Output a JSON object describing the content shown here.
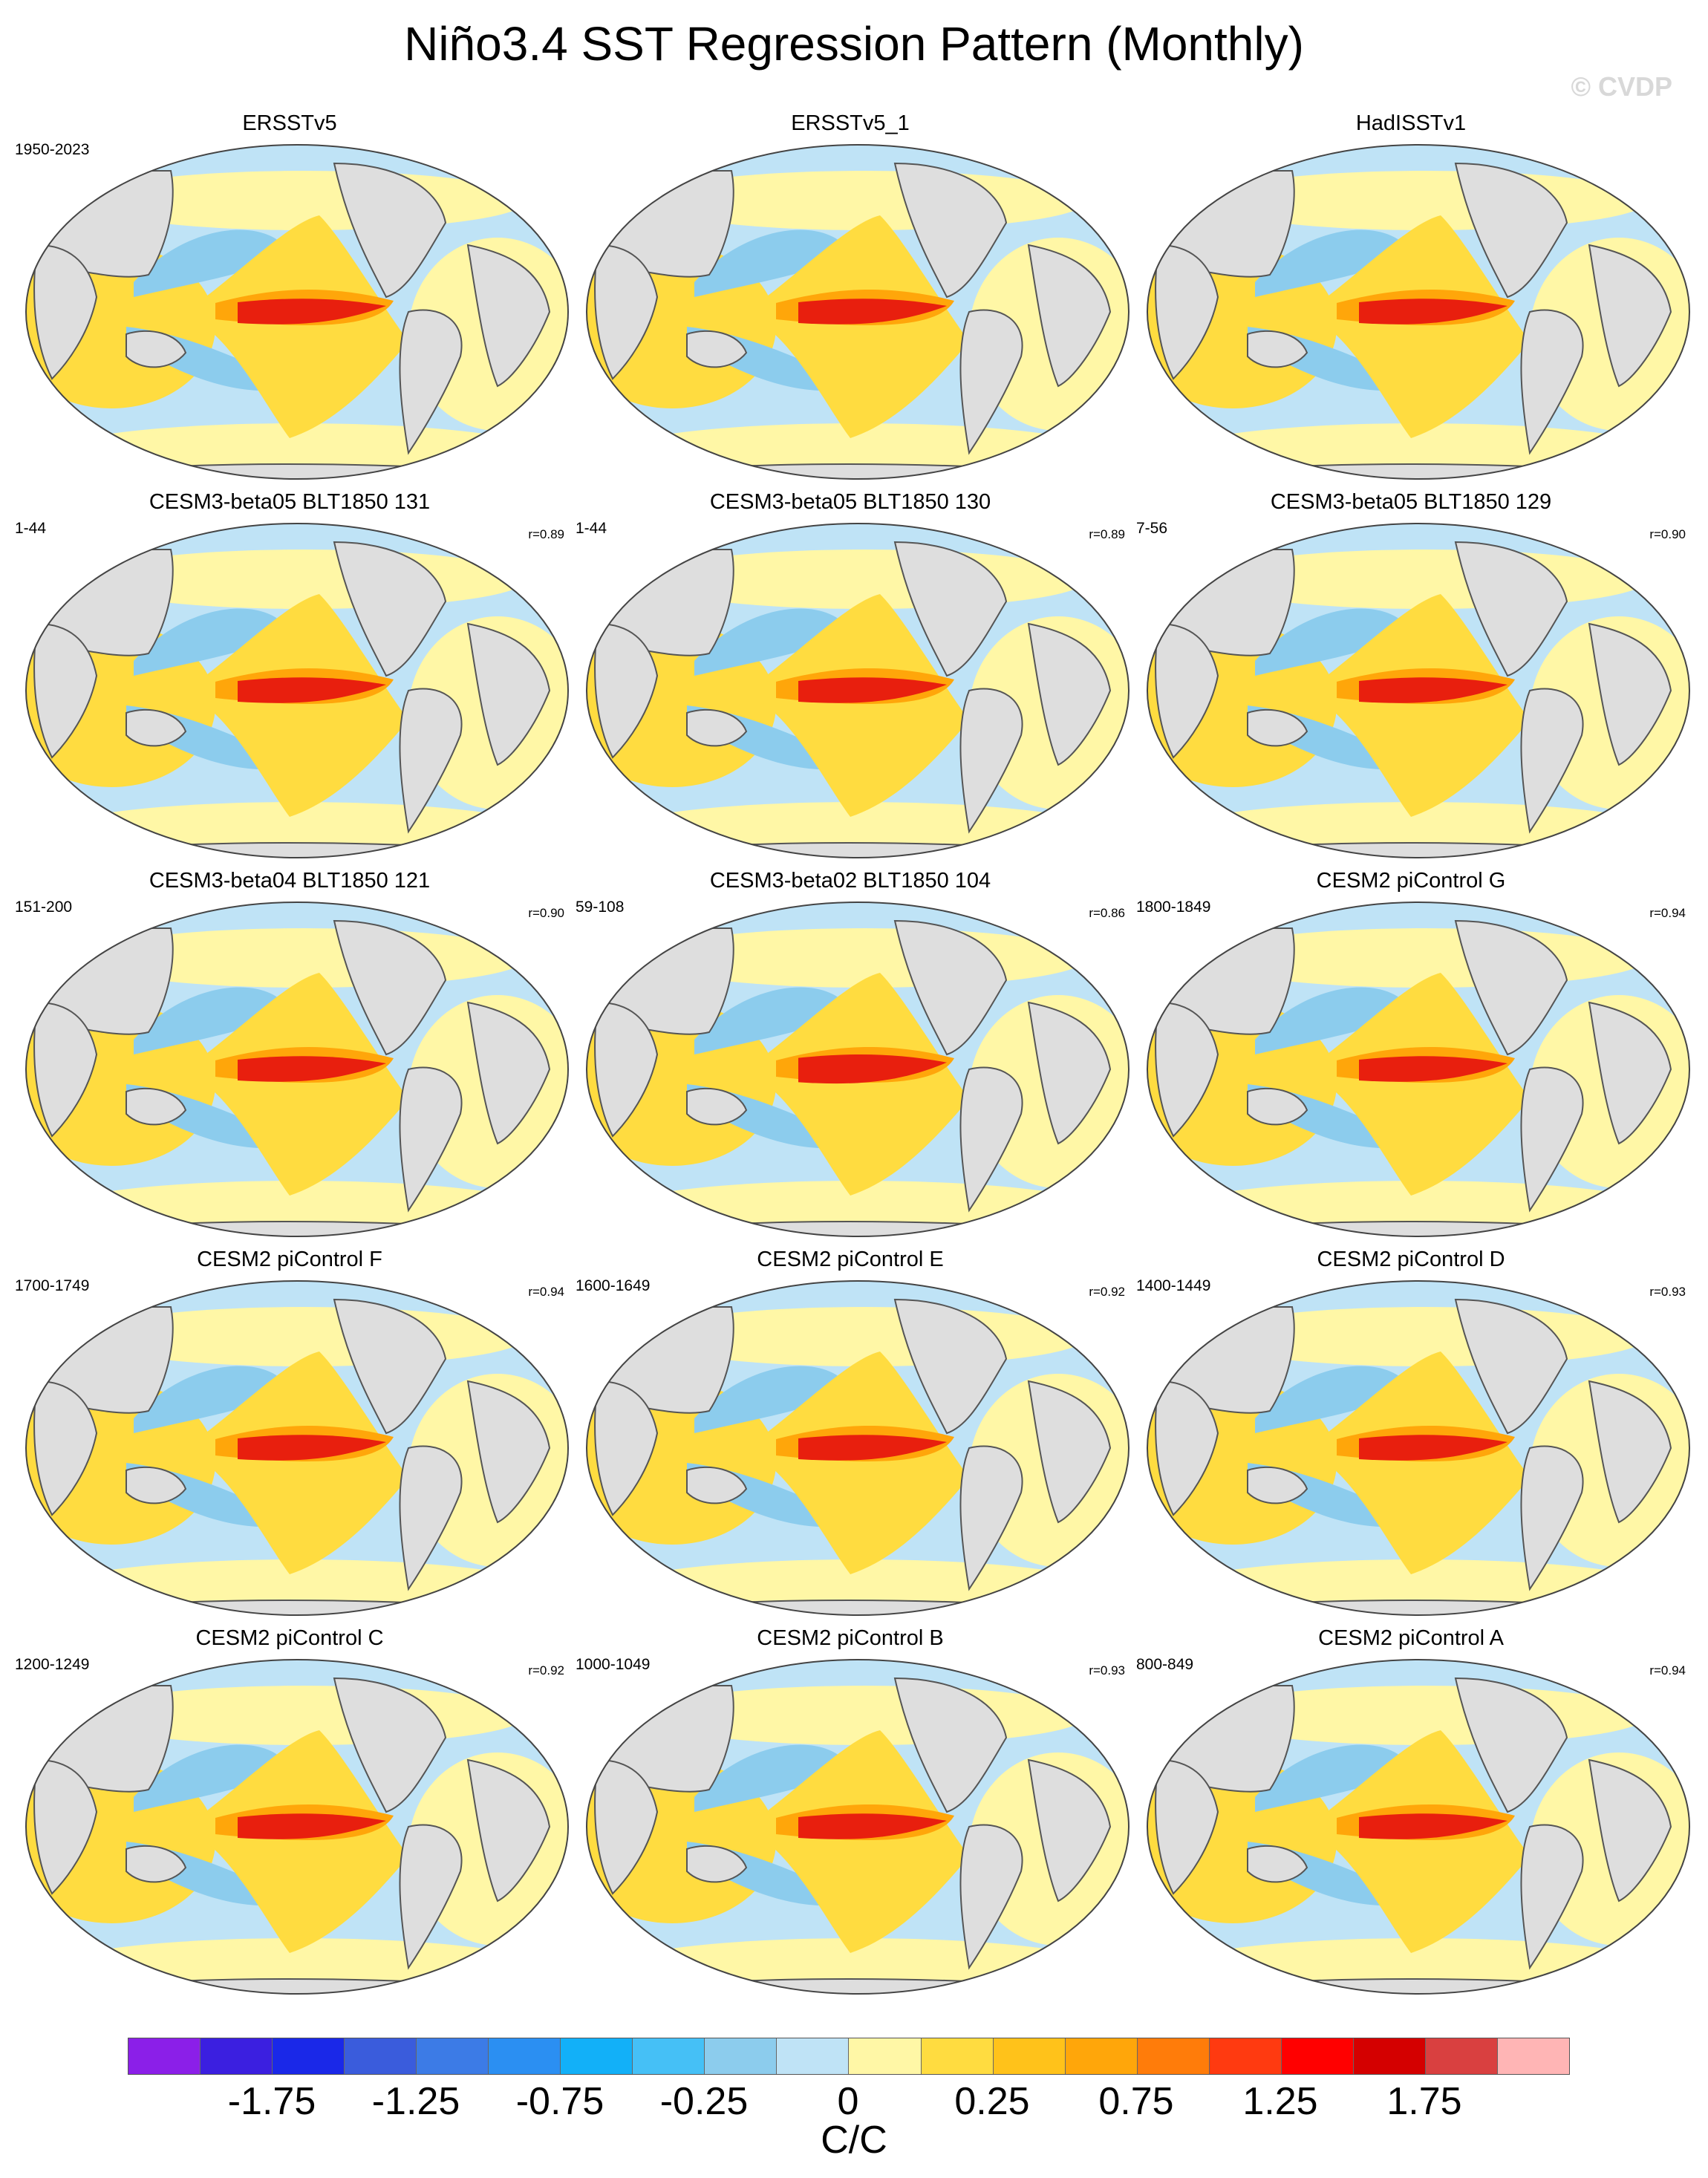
{
  "title": "Niño3.4 SST Regression Pattern (Monthly)",
  "watermark": "© CVDP",
  "panels": [
    {
      "title": "ERSSTv5",
      "period": "1950-2023",
      "corr": ""
    },
    {
      "title": "ERSSTv5_1",
      "period": "",
      "corr": ""
    },
    {
      "title": "HadISSTv1",
      "period": "",
      "corr": ""
    },
    {
      "title": "CESM3-beta05 BLT1850 131",
      "period": "1-44",
      "corr": "r=0.89"
    },
    {
      "title": "CESM3-beta05 BLT1850 130",
      "period": "1-44",
      "corr": "r=0.89"
    },
    {
      "title": "CESM3-beta05 BLT1850 129",
      "period": "7-56",
      "corr": "r=0.90"
    },
    {
      "title": "CESM3-beta04 BLT1850 121",
      "period": "151-200",
      "corr": "r=0.90"
    },
    {
      "title": "CESM3-beta02 BLT1850 104",
      "period": "59-108",
      "corr": "r=0.86"
    },
    {
      "title": "CESM2 piControl G",
      "period": "1800-1849",
      "corr": "r=0.94"
    },
    {
      "title": "CESM2 piControl F",
      "period": "1700-1749",
      "corr": "r=0.94"
    },
    {
      "title": "CESM2 piControl E",
      "period": "1600-1649",
      "corr": "r=0.92"
    },
    {
      "title": "CESM2 piControl D",
      "period": "1400-1449",
      "corr": "r=0.93"
    },
    {
      "title": "CESM2 piControl C",
      "period": "1200-1249",
      "corr": "r=0.92"
    },
    {
      "title": "CESM2 piControl B",
      "period": "1000-1049",
      "corr": "r=0.93"
    },
    {
      "title": "CESM2 piControl A",
      "period": "800-849",
      "corr": "r=0.94"
    }
  ],
  "colorbar": {
    "units": "C/C",
    "tick_labels": [
      "-1.75",
      "-1.25",
      "-0.75",
      "-0.25",
      "0",
      "0.25",
      "0.75",
      "1.25",
      "1.75"
    ],
    "colors": [
      "#8b1fe8",
      "#3b1fe0",
      "#1a28e8",
      "#3a5cdc",
      "#3c7be6",
      "#2b8ff2",
      "#12b0f8",
      "#45c0f6",
      "#8ccced",
      "#bfe3f6",
      "#fff7a6",
      "#ffdc40",
      "#ffc21a",
      "#ffa60a",
      "#ff7c0a",
      "#ff3a10",
      "#ff0000",
      "#d40000",
      "#d94040",
      "#ffb5b5"
    ]
  },
  "colors": {
    "land": "#dedede",
    "coast": "#555555",
    "warm_strong": "#e81f0e",
    "warm_mid": "#ffa60a",
    "warm_light": "#ffdc40",
    "pale_yellow": "#fff7a6",
    "pale_blue": "#bfe3f6",
    "blue": "#8ccced"
  }
}
